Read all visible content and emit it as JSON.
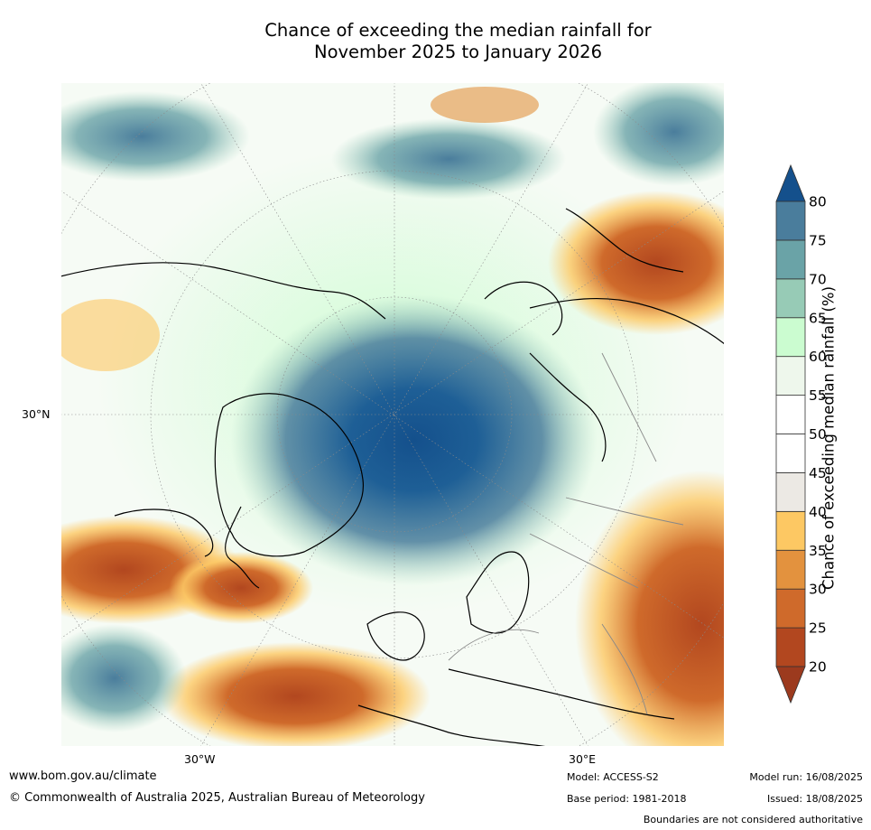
{
  "title": {
    "line1": "Chance of exceeding the median rainfall for",
    "line2": "November 2025 to January 2026"
  },
  "map": {
    "projection": "north-polar-stereographic",
    "lat_label": "30°N",
    "lon_labels": [
      "30°W",
      "30°E"
    ]
  },
  "colorbar": {
    "title": "Chance of exceeding median rainfall (%)",
    "ticks": [
      "20",
      "25",
      "30",
      "35",
      "40",
      "45",
      "50",
      "55",
      "60",
      "65",
      "70",
      "75",
      "80"
    ],
    "bins": [
      {
        "color": "#9c3a1e"
      },
      {
        "color": "#b2471f"
      },
      {
        "color": "#cf6a2b"
      },
      {
        "color": "#e3923e"
      },
      {
        "color": "#fdc863"
      },
      {
        "color": "#ece9e4"
      },
      {
        "color": "#ffffff"
      },
      {
        "color": "#ffffff"
      },
      {
        "color": "#eef7ec"
      },
      {
        "color": "#cbfcd0"
      },
      {
        "color": "#97cbb6"
      },
      {
        "color": "#6aa3a7"
      },
      {
        "color": "#4a7d9c"
      },
      {
        "color": "#14508c"
      }
    ]
  },
  "footer": {
    "website": "www.bom.gov.au/climate",
    "copyright": "© Commonwealth of Australia 2025, Australian Bureau of Meteorology",
    "model": "Model: ACCESS-S2",
    "base_period": "Base period: 1981-2018",
    "model_run": "Model run: 16/08/2025",
    "issued": "Issued: 18/08/2025",
    "disclaimer": "Boundaries are not considered authoritative"
  }
}
